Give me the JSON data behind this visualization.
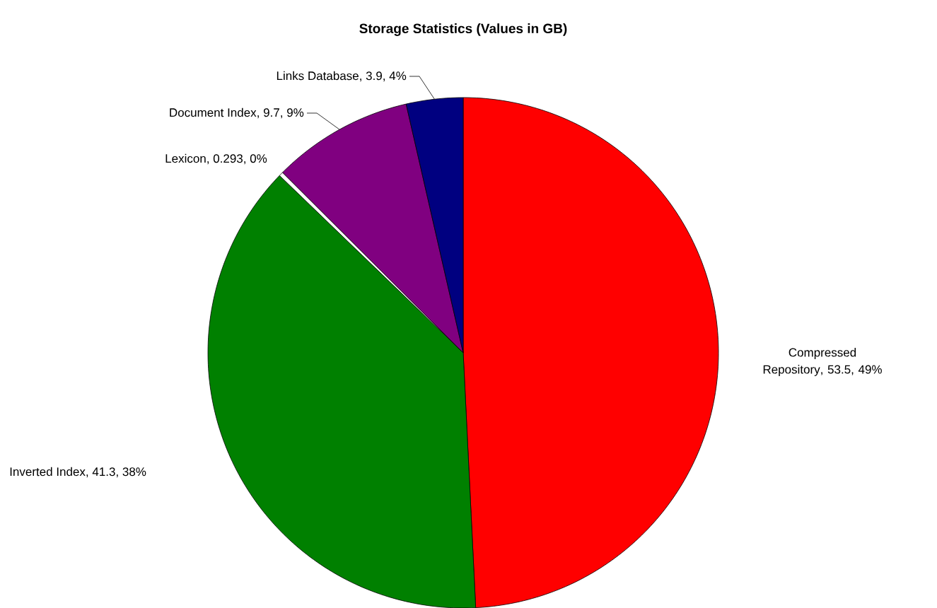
{
  "chart_data": {
    "type": "pie",
    "title": "Storage Statistics (Values in GB)",
    "categories": [
      "Compressed Repository",
      "Inverted Index",
      "Lexicon",
      "Document Index",
      "Links Database"
    ],
    "values": [
      53.5,
      41.3,
      0.293,
      9.7,
      3.9
    ],
    "colors": [
      "#ff0000",
      "#008000",
      "#ffffff",
      "#800080",
      "#000080"
    ],
    "value_labels": [
      ", 53.5, 49%",
      ", 41.3, 38%",
      ", 0.293, 0%",
      ", 9.7, 9%",
      ", 3.9, 4%"
    ]
  }
}
